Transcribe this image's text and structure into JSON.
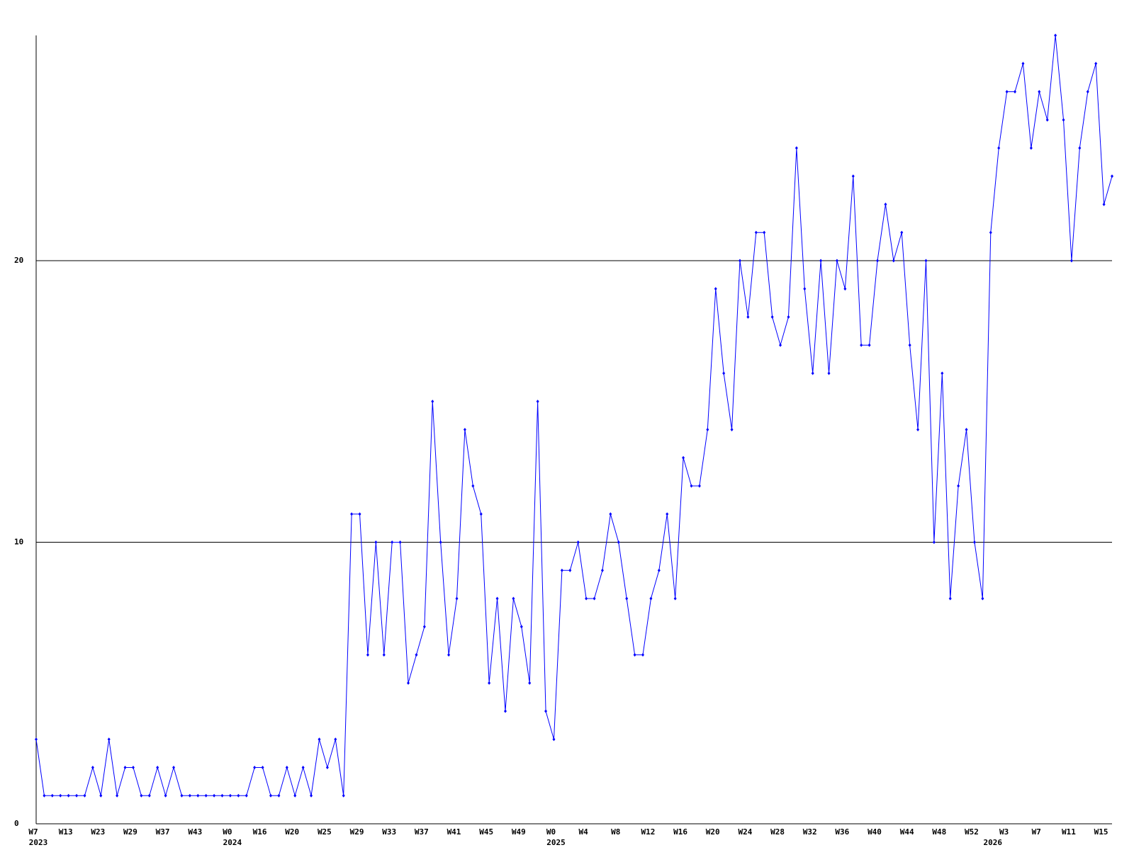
{
  "chart_data": {
    "type": "line",
    "categories": [
      "W7",
      null,
      null,
      null,
      "W13",
      null,
      null,
      null,
      "W23",
      null,
      null,
      null,
      "W29",
      null,
      null,
      null,
      "W37",
      null,
      null,
      null,
      "W43",
      null,
      null,
      null,
      "W0",
      null,
      null,
      null,
      "W16",
      null,
      null,
      null,
      "W20",
      null,
      null,
      null,
      "W25",
      null,
      null,
      null,
      "W29",
      null,
      null,
      null,
      "W33",
      null,
      null,
      null,
      "W37",
      null,
      null,
      null,
      "W41",
      null,
      null,
      null,
      "W45",
      null,
      null,
      null,
      "W49",
      null,
      null,
      null,
      "W0",
      null,
      null,
      null,
      "W4",
      null,
      null,
      null,
      "W8",
      null,
      null,
      null,
      "W12",
      null,
      null,
      null,
      "W16",
      null,
      null,
      null,
      "W20",
      null,
      null,
      null,
      "W24",
      null,
      null,
      null,
      "W28",
      null,
      null,
      null,
      "W32",
      null,
      null,
      null,
      "W36",
      null,
      null,
      null,
      "W40",
      null,
      null,
      null,
      "W44",
      null,
      null,
      null,
      "W48",
      null,
      null,
      null,
      "W52",
      null,
      null,
      null,
      "W3",
      null,
      null,
      null,
      "W7",
      null,
      null,
      null,
      "W11",
      null,
      null,
      null,
      "W15",
      null
    ],
    "years": [
      "2023",
      null,
      null,
      null,
      null,
      null,
      null,
      null,
      null,
      null,
      null,
      null,
      null,
      null,
      null,
      null,
      null,
      null,
      null,
      null,
      null,
      null,
      null,
      null,
      "2024",
      null,
      null,
      null,
      null,
      null,
      null,
      null,
      null,
      null,
      null,
      null,
      null,
      null,
      null,
      null,
      null,
      null,
      null,
      null,
      null,
      null,
      null,
      null,
      null,
      null,
      null,
      null,
      null,
      null,
      null,
      null,
      null,
      null,
      null,
      null,
      null,
      null,
      null,
      null,
      "2025",
      null,
      null,
      null,
      null,
      null,
      null,
      null,
      null,
      null,
      null,
      null,
      null,
      null,
      null,
      null,
      null,
      null,
      null,
      null,
      null,
      null,
      null,
      null,
      null,
      null,
      null,
      null,
      null,
      null,
      null,
      null,
      null,
      null,
      null,
      null,
      null,
      null,
      null,
      null,
      null,
      null,
      null,
      null,
      null,
      null,
      null,
      null,
      null,
      null,
      null,
      null,
      null,
      null,
      "2026",
      null,
      null,
      null,
      null,
      null,
      null,
      null,
      null,
      null,
      null,
      null,
      null,
      null,
      null,
      null
    ],
    "series": [
      {
        "color": "#0000ff",
        "values": [
          3,
          1,
          1,
          1,
          1,
          1,
          1,
          2,
          1,
          3,
          1,
          2,
          2,
          1,
          1,
          2,
          1,
          2,
          1,
          1,
          1,
          1,
          1,
          1,
          1,
          1,
          1,
          2,
          2,
          1,
          1,
          2,
          1,
          2,
          1,
          3,
          2,
          3,
          1,
          11,
          11,
          6,
          10,
          6,
          10,
          10,
          5,
          6,
          7,
          15,
          10,
          6,
          8,
          14,
          12,
          11,
          5,
          8,
          4,
          8,
          7,
          5,
          15,
          4,
          3,
          9,
          9,
          10,
          8,
          8,
          9,
          11,
          10,
          8,
          6,
          6,
          8,
          9,
          11,
          8,
          13,
          12,
          12,
          14,
          19,
          16,
          14,
          20,
          18,
          21,
          21,
          18,
          17,
          18,
          24,
          19,
          16,
          20,
          16,
          20,
          19,
          23,
          17,
          17,
          20,
          22,
          20,
          21,
          17,
          14,
          20,
          10,
          16,
          8,
          12,
          14,
          10,
          8,
          21,
          24,
          26,
          26,
          27,
          24,
          26,
          25,
          28,
          25,
          20,
          24,
          26,
          27,
          22,
          23
        ]
      }
    ],
    "ylim": [
      0,
      28
    ],
    "yticks": [
      0,
      10,
      20
    ],
    "grid": true
  }
}
